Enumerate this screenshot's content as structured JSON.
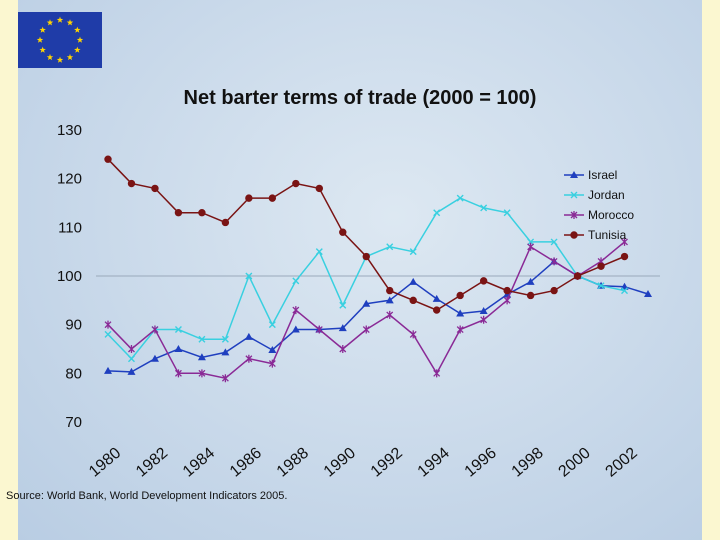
{
  "source_note": "Source: World Bank, World Development Indicators 2005.",
  "colors": {
    "Israel": "#1f3fbf",
    "Jordan": "#39d0e0",
    "Morocco": "#8a2a96",
    "Tunisia": "#7a1414",
    "background": "#c9d9ea",
    "page": "#fbf7d0",
    "flag": "#1f3ca8",
    "flag_stars": "#ffd400"
  },
  "chart_data": {
    "type": "line",
    "title": "Net barter terms of trade (2000  = 100)",
    "xlabel": "",
    "ylabel": "",
    "x": [
      1980,
      1981,
      1982,
      1983,
      1984,
      1985,
      1986,
      1987,
      1988,
      1989,
      1990,
      1991,
      1992,
      1993,
      1994,
      1995,
      1996,
      1997,
      1998,
      1999,
      2000,
      2001,
      2002,
      2003
    ],
    "x_tick_labels": [
      "1980",
      "1982",
      "1984",
      "1986",
      "1988",
      "1990",
      "1992",
      "1994",
      "1996",
      "1998",
      "2000",
      "2002"
    ],
    "ylim": [
      70,
      130
    ],
    "y_ticks": [
      70,
      80,
      90,
      100,
      110,
      120,
      130
    ],
    "grid": "horizontal line at 100",
    "legend": "right",
    "series": [
      {
        "name": "Israel",
        "marker": "triangle",
        "values": [
          80.5,
          80.3,
          83,
          85,
          83.3,
          84.3,
          87.5,
          84.8,
          89,
          89,
          89.3,
          94.3,
          95,
          98.8,
          95.3,
          92.3,
          92.8,
          96.2,
          98.8,
          103,
          100,
          98,
          97.8,
          96.3
        ]
      },
      {
        "name": "Jordan",
        "marker": "x",
        "values": [
          88,
          83,
          89,
          89,
          87,
          87,
          100,
          90,
          99,
          105,
          94,
          104,
          106,
          105,
          113,
          116,
          114,
          113,
          107,
          107,
          100,
          98,
          97,
          null
        ]
      },
      {
        "name": "Morocco",
        "marker": "star",
        "values": [
          90,
          85,
          89,
          80,
          80,
          79,
          83,
          82,
          93,
          89,
          85,
          89,
          92,
          88,
          80,
          89,
          91,
          95,
          106,
          103,
          100,
          103,
          107,
          null
        ]
      },
      {
        "name": "Tunisia",
        "marker": "circle",
        "values": [
          124,
          119,
          118,
          113,
          113,
          111,
          116,
          116,
          119,
          118,
          109,
          104,
          97,
          95,
          93,
          96,
          99,
          97,
          96,
          97,
          100,
          102,
          104,
          null
        ]
      }
    ]
  }
}
